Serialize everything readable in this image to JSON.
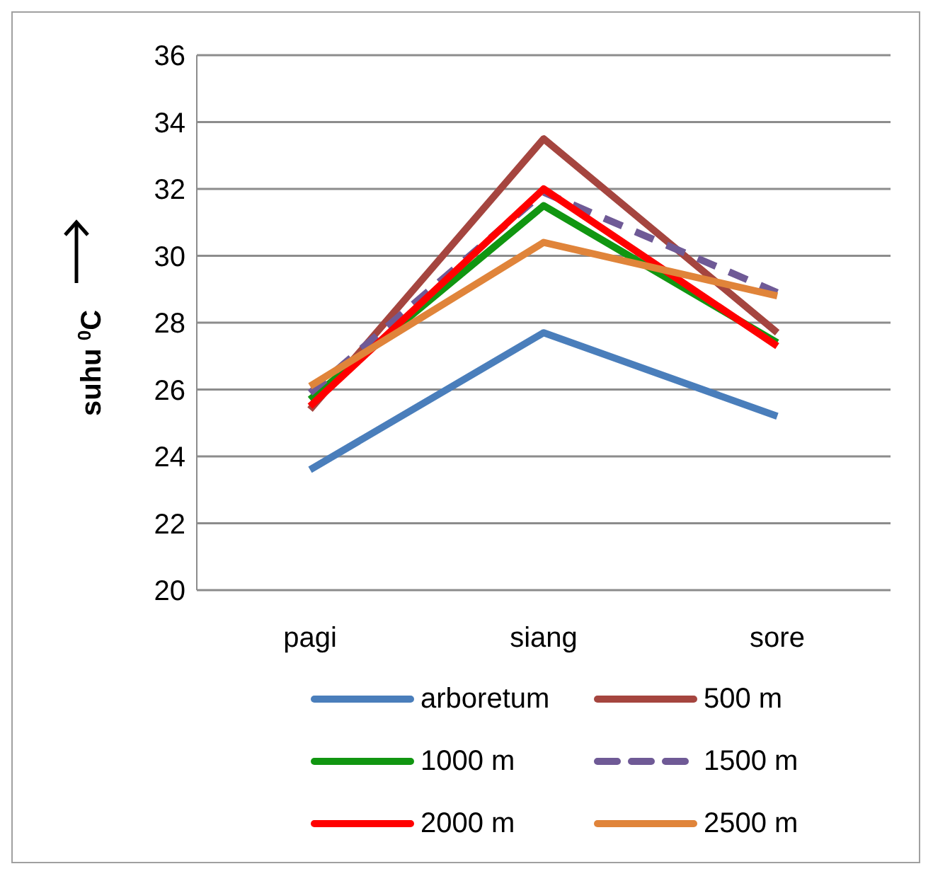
{
  "chart_data": {
    "type": "line",
    "ylabel": "suhu $^{0}$C",
    "categories": [
      "pagi",
      "siang",
      "sore"
    ],
    "series": [
      {
        "name": "arboretum",
        "color": "#4a7ebb",
        "values": [
          23.6,
          27.7,
          25.2
        ]
      },
      {
        "name": "500  m",
        "color": "#a5453f",
        "values": [
          25.4,
          33.5,
          27.7
        ]
      },
      {
        "name": "1000  m",
        "color": "#119611",
        "values": [
          25.7,
          31.5,
          27.4
        ]
      },
      {
        "name": "1500  m",
        "color": "#6f5a96",
        "values": [
          25.9,
          31.9,
          28.9
        ],
        "line_style": "dashed"
      },
      {
        "name": "2000  m",
        "color": "#ff0000",
        "values": [
          25.5,
          32.0,
          27.3
        ]
      },
      {
        "name": "2500  m",
        "color": "#e0843a",
        "values": [
          26.1,
          30.4,
          28.8
        ]
      }
    ],
    "ylim": [
      20,
      36
    ],
    "yticks": [
      20,
      22,
      24,
      26,
      28,
      30,
      32,
      34,
      36
    ],
    "grid": "y",
    "legend": "bottom",
    "marker": "none",
    "line_style": "solid"
  }
}
